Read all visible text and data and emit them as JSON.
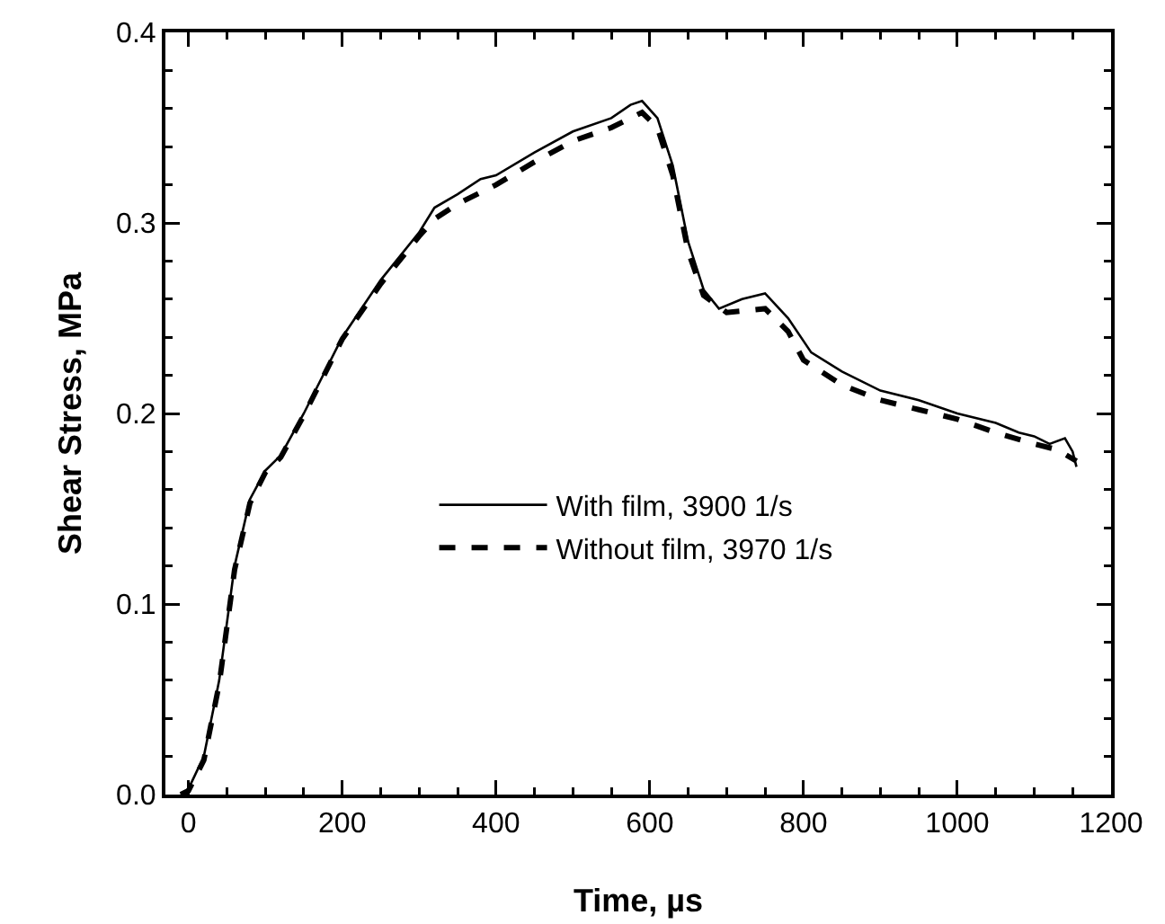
{
  "chart_data": {
    "type": "line",
    "xlabel": "Time, µs",
    "ylabel": "Shear Stress, MPa",
    "xlim": [
      -30,
      1200
    ],
    "ylim": [
      0,
      0.4
    ],
    "xticks": [
      0,
      200,
      400,
      600,
      800,
      1000,
      1200
    ],
    "yticks": [
      {
        "value": 0,
        "label": "0.0"
      },
      0.1,
      0.2,
      0.3,
      0.4
    ],
    "grid": false,
    "legend": "bottom",
    "marker": "none",
    "series": [
      {
        "name": "With film, 3900 1/s",
        "color": "#000000",
        "line_style": "solid",
        "x": [
          -10,
          0,
          20,
          40,
          50,
          60,
          80,
          100,
          120,
          150,
          200,
          250,
          300,
          320,
          350,
          380,
          400,
          450,
          500,
          550,
          575,
          590,
          610,
          630,
          650,
          670,
          690,
          720,
          750,
          780,
          810,
          850,
          900,
          950,
          1000,
          1050,
          1080,
          1100,
          1120,
          1140,
          1150,
          1155
        ],
        "values": [
          0,
          0.003,
          0.02,
          0.06,
          0.09,
          0.12,
          0.155,
          0.17,
          0.178,
          0.2,
          0.24,
          0.27,
          0.295,
          0.308,
          0.315,
          0.323,
          0.325,
          0.337,
          0.348,
          0.355,
          0.362,
          0.364,
          0.355,
          0.33,
          0.29,
          0.265,
          0.255,
          0.26,
          0.263,
          0.25,
          0.232,
          0.222,
          0.212,
          0.207,
          0.2,
          0.195,
          0.19,
          0.188,
          0.184,
          0.187,
          0.18,
          0.172
        ]
      },
      {
        "name": "Without film, 3970 1/s",
        "color": "#000000",
        "line_style": "dashed",
        "x": [
          -10,
          0,
          20,
          40,
          50,
          60,
          80,
          100,
          120,
          150,
          200,
          250,
          300,
          320,
          350,
          400,
          450,
          500,
          550,
          590,
          610,
          630,
          650,
          670,
          700,
          750,
          780,
          800,
          850,
          900,
          950,
          1000,
          1050,
          1100,
          1130,
          1155
        ],
        "values": [
          0,
          0.002,
          0.018,
          0.058,
          0.088,
          0.118,
          0.153,
          0.169,
          0.177,
          0.199,
          0.239,
          0.268,
          0.293,
          0.302,
          0.31,
          0.32,
          0.332,
          0.343,
          0.35,
          0.358,
          0.35,
          0.325,
          0.285,
          0.262,
          0.253,
          0.255,
          0.243,
          0.228,
          0.215,
          0.207,
          0.202,
          0.197,
          0.19,
          0.184,
          0.181,
          0.175
        ]
      }
    ]
  }
}
